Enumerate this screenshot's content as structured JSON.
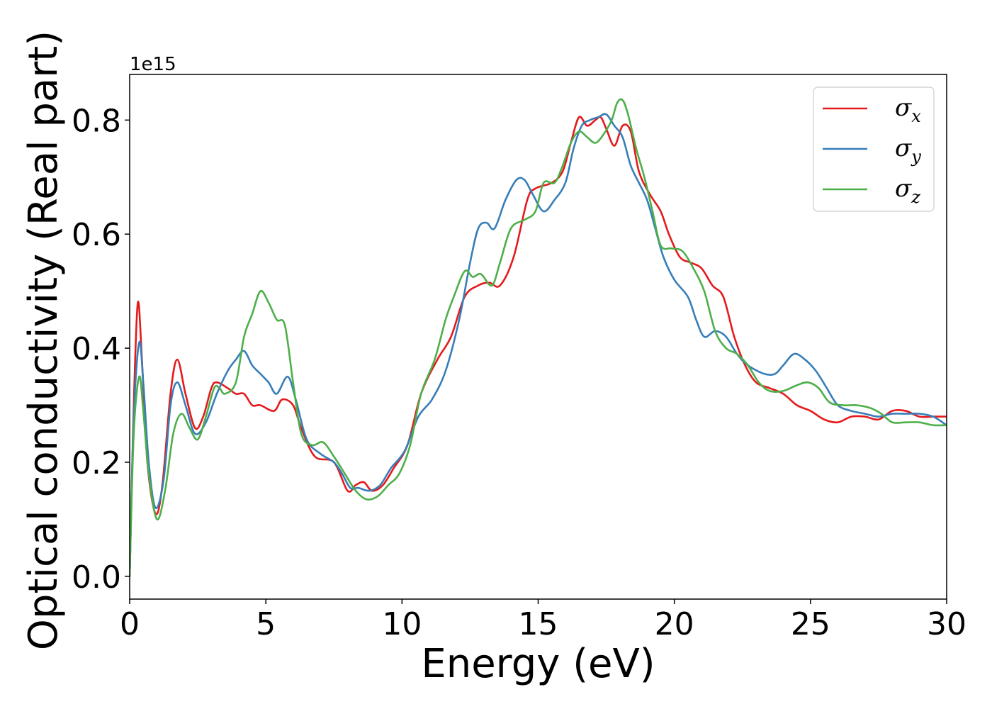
{
  "chart_data": {
    "type": "line",
    "xlabel": "Energy (eV)",
    "ylabel": "Optical conductivity (Real part)",
    "y_offset_label": "1e15",
    "xlim": [
      0,
      30
    ],
    "ylim": [
      -0.04,
      0.88
    ],
    "x_ticks": [
      0,
      5,
      10,
      15,
      20,
      25,
      30
    ],
    "x_tick_labels": [
      "0",
      "5",
      "10",
      "15",
      "20",
      "25",
      "30"
    ],
    "y_ticks": [
      0.0,
      0.2,
      0.4,
      0.6,
      0.8
    ],
    "y_tick_labels": [
      "0.0",
      "0.2",
      "0.4",
      "0.6",
      "0.8"
    ],
    "grid": false,
    "legend_position": "top-right",
    "series": [
      {
        "name": "σx",
        "symbol": "σ",
        "sub": "x",
        "color": "#e41a1c",
        "points": [
          [
            0,
            0
          ],
          [
            0.15,
            0.3
          ],
          [
            0.3,
            0.48
          ],
          [
            0.45,
            0.38
          ],
          [
            0.65,
            0.2
          ],
          [
            0.95,
            0.11
          ],
          [
            1.2,
            0.16
          ],
          [
            1.5,
            0.32
          ],
          [
            1.75,
            0.38
          ],
          [
            2.05,
            0.32
          ],
          [
            2.4,
            0.26
          ],
          [
            2.7,
            0.28
          ],
          [
            3.0,
            0.33
          ],
          [
            3.2,
            0.34
          ],
          [
            3.6,
            0.33
          ],
          [
            3.9,
            0.32
          ],
          [
            4.2,
            0.32
          ],
          [
            4.5,
            0.3
          ],
          [
            4.8,
            0.3
          ],
          [
            5.3,
            0.29
          ],
          [
            5.6,
            0.31
          ],
          [
            6.0,
            0.3
          ],
          [
            6.3,
            0.26
          ],
          [
            6.8,
            0.21
          ],
          [
            7.5,
            0.2
          ],
          [
            8.0,
            0.15
          ],
          [
            8.3,
            0.16
          ],
          [
            8.6,
            0.165
          ],
          [
            8.9,
            0.15
          ],
          [
            9.3,
            0.16
          ],
          [
            9.7,
            0.19
          ],
          [
            10.2,
            0.23
          ],
          [
            10.7,
            0.32
          ],
          [
            11.3,
            0.38
          ],
          [
            11.8,
            0.42
          ],
          [
            12.3,
            0.49
          ],
          [
            12.8,
            0.51
          ],
          [
            13.2,
            0.515
          ],
          [
            13.6,
            0.51
          ],
          [
            14.1,
            0.56
          ],
          [
            14.6,
            0.66
          ],
          [
            14.9,
            0.68
          ],
          [
            15.5,
            0.69
          ],
          [
            15.9,
            0.71
          ],
          [
            16.2,
            0.76
          ],
          [
            16.5,
            0.805
          ],
          [
            16.8,
            0.79
          ],
          [
            17.1,
            0.8
          ],
          [
            17.3,
            0.805
          ],
          [
            17.5,
            0.785
          ],
          [
            17.8,
            0.755
          ],
          [
            18.1,
            0.79
          ],
          [
            18.4,
            0.78
          ],
          [
            18.7,
            0.71
          ],
          [
            19.1,
            0.67
          ],
          [
            19.5,
            0.64
          ],
          [
            19.8,
            0.6
          ],
          [
            20.2,
            0.56
          ],
          [
            20.6,
            0.55
          ],
          [
            21.0,
            0.54
          ],
          [
            21.4,
            0.51
          ],
          [
            21.8,
            0.49
          ],
          [
            22.2,
            0.42
          ],
          [
            22.6,
            0.37
          ],
          [
            23.0,
            0.34
          ],
          [
            23.5,
            0.33
          ],
          [
            24.0,
            0.32
          ],
          [
            24.5,
            0.3
          ],
          [
            25.0,
            0.29
          ],
          [
            25.5,
            0.275
          ],
          [
            26.0,
            0.27
          ],
          [
            26.5,
            0.28
          ],
          [
            27.0,
            0.28
          ],
          [
            27.5,
            0.275
          ],
          [
            28.0,
            0.29
          ],
          [
            28.5,
            0.29
          ],
          [
            29.0,
            0.28
          ],
          [
            29.5,
            0.28
          ],
          [
            30.0,
            0.28
          ]
        ]
      },
      {
        "name": "σy",
        "symbol": "σ",
        "sub": "y",
        "color": "#377eb8",
        "points": [
          [
            0,
            0
          ],
          [
            0.15,
            0.28
          ],
          [
            0.35,
            0.41
          ],
          [
            0.5,
            0.34
          ],
          [
            0.7,
            0.2
          ],
          [
            0.95,
            0.12
          ],
          [
            1.25,
            0.17
          ],
          [
            1.5,
            0.3
          ],
          [
            1.75,
            0.34
          ],
          [
            2.05,
            0.3
          ],
          [
            2.4,
            0.25
          ],
          [
            2.8,
            0.27
          ],
          [
            3.2,
            0.32
          ],
          [
            3.6,
            0.36
          ],
          [
            3.9,
            0.38
          ],
          [
            4.2,
            0.395
          ],
          [
            4.5,
            0.37
          ],
          [
            4.8,
            0.355
          ],
          [
            5.1,
            0.34
          ],
          [
            5.4,
            0.32
          ],
          [
            5.8,
            0.35
          ],
          [
            6.1,
            0.31
          ],
          [
            6.5,
            0.24
          ],
          [
            7.0,
            0.215
          ],
          [
            7.5,
            0.2
          ],
          [
            7.8,
            0.18
          ],
          [
            8.1,
            0.155
          ],
          [
            8.4,
            0.155
          ],
          [
            8.8,
            0.15
          ],
          [
            9.2,
            0.16
          ],
          [
            9.6,
            0.19
          ],
          [
            10.1,
            0.22
          ],
          [
            10.6,
            0.28
          ],
          [
            11.1,
            0.31
          ],
          [
            11.6,
            0.36
          ],
          [
            12.1,
            0.45
          ],
          [
            12.5,
            0.55
          ],
          [
            12.8,
            0.61
          ],
          [
            13.1,
            0.62
          ],
          [
            13.4,
            0.61
          ],
          [
            13.8,
            0.66
          ],
          [
            14.2,
            0.695
          ],
          [
            14.5,
            0.695
          ],
          [
            14.8,
            0.67
          ],
          [
            15.2,
            0.64
          ],
          [
            15.6,
            0.66
          ],
          [
            16.0,
            0.69
          ],
          [
            16.3,
            0.75
          ],
          [
            16.6,
            0.79
          ],
          [
            16.9,
            0.8
          ],
          [
            17.2,
            0.805
          ],
          [
            17.5,
            0.81
          ],
          [
            17.8,
            0.79
          ],
          [
            18.1,
            0.77
          ],
          [
            18.4,
            0.72
          ],
          [
            18.7,
            0.69
          ],
          [
            19.0,
            0.66
          ],
          [
            19.3,
            0.61
          ],
          [
            19.6,
            0.56
          ],
          [
            20.0,
            0.52
          ],
          [
            20.5,
            0.49
          ],
          [
            20.8,
            0.45
          ],
          [
            21.1,
            0.42
          ],
          [
            21.5,
            0.43
          ],
          [
            21.9,
            0.42
          ],
          [
            22.3,
            0.39
          ],
          [
            22.7,
            0.37
          ],
          [
            23.3,
            0.355
          ],
          [
            23.7,
            0.355
          ],
          [
            24.0,
            0.37
          ],
          [
            24.4,
            0.39
          ],
          [
            24.8,
            0.38
          ],
          [
            25.2,
            0.36
          ],
          [
            25.6,
            0.33
          ],
          [
            26.0,
            0.3
          ],
          [
            26.5,
            0.29
          ],
          [
            27.0,
            0.285
          ],
          [
            27.5,
            0.28
          ],
          [
            28.0,
            0.285
          ],
          [
            28.5,
            0.285
          ],
          [
            29.0,
            0.285
          ],
          [
            29.5,
            0.28
          ],
          [
            30.0,
            0.265
          ]
        ]
      },
      {
        "name": "σz",
        "symbol": "σ",
        "sub": "z",
        "color": "#4daf4a",
        "points": [
          [
            0,
            0
          ],
          [
            0.15,
            0.25
          ],
          [
            0.35,
            0.35
          ],
          [
            0.5,
            0.29
          ],
          [
            0.7,
            0.18
          ],
          [
            1.0,
            0.1
          ],
          [
            1.3,
            0.15
          ],
          [
            1.6,
            0.25
          ],
          [
            1.9,
            0.285
          ],
          [
            2.2,
            0.26
          ],
          [
            2.5,
            0.24
          ],
          [
            2.8,
            0.28
          ],
          [
            3.1,
            0.33
          ],
          [
            3.3,
            0.33
          ],
          [
            3.5,
            0.32
          ],
          [
            3.9,
            0.34
          ],
          [
            4.2,
            0.42
          ],
          [
            4.5,
            0.46
          ],
          [
            4.8,
            0.5
          ],
          [
            5.1,
            0.48
          ],
          [
            5.4,
            0.45
          ],
          [
            5.7,
            0.44
          ],
          [
            6.0,
            0.34
          ],
          [
            6.3,
            0.25
          ],
          [
            6.7,
            0.23
          ],
          [
            7.1,
            0.235
          ],
          [
            7.5,
            0.21
          ],
          [
            7.9,
            0.18
          ],
          [
            8.3,
            0.15
          ],
          [
            8.7,
            0.135
          ],
          [
            9.1,
            0.14
          ],
          [
            9.5,
            0.16
          ],
          [
            9.9,
            0.18
          ],
          [
            10.3,
            0.23
          ],
          [
            10.7,
            0.32
          ],
          [
            11.2,
            0.38
          ],
          [
            11.6,
            0.45
          ],
          [
            11.9,
            0.49
          ],
          [
            12.3,
            0.535
          ],
          [
            12.6,
            0.525
          ],
          [
            12.9,
            0.53
          ],
          [
            13.3,
            0.51
          ],
          [
            13.6,
            0.55
          ],
          [
            14.0,
            0.61
          ],
          [
            14.5,
            0.625
          ],
          [
            14.9,
            0.64
          ],
          [
            15.2,
            0.69
          ],
          [
            15.6,
            0.69
          ],
          [
            15.9,
            0.72
          ],
          [
            16.2,
            0.76
          ],
          [
            16.5,
            0.78
          ],
          [
            16.8,
            0.77
          ],
          [
            17.1,
            0.76
          ],
          [
            17.4,
            0.775
          ],
          [
            17.7,
            0.8
          ],
          [
            17.9,
            0.83
          ],
          [
            18.1,
            0.835
          ],
          [
            18.3,
            0.81
          ],
          [
            18.6,
            0.75
          ],
          [
            18.9,
            0.7
          ],
          [
            19.2,
            0.64
          ],
          [
            19.5,
            0.58
          ],
          [
            19.9,
            0.575
          ],
          [
            20.3,
            0.57
          ],
          [
            20.7,
            0.54
          ],
          [
            21.1,
            0.5
          ],
          [
            21.5,
            0.43
          ],
          [
            21.9,
            0.4
          ],
          [
            22.3,
            0.39
          ],
          [
            22.7,
            0.37
          ],
          [
            23.1,
            0.34
          ],
          [
            23.5,
            0.325
          ],
          [
            24.0,
            0.325
          ],
          [
            24.5,
            0.335
          ],
          [
            24.9,
            0.34
          ],
          [
            25.3,
            0.33
          ],
          [
            25.7,
            0.305
          ],
          [
            26.2,
            0.3
          ],
          [
            26.7,
            0.3
          ],
          [
            27.2,
            0.295
          ],
          [
            27.6,
            0.285
          ],
          [
            28.0,
            0.27
          ],
          [
            28.5,
            0.27
          ],
          [
            29.0,
            0.27
          ],
          [
            29.5,
            0.265
          ],
          [
            30.0,
            0.265
          ]
        ]
      }
    ]
  }
}
